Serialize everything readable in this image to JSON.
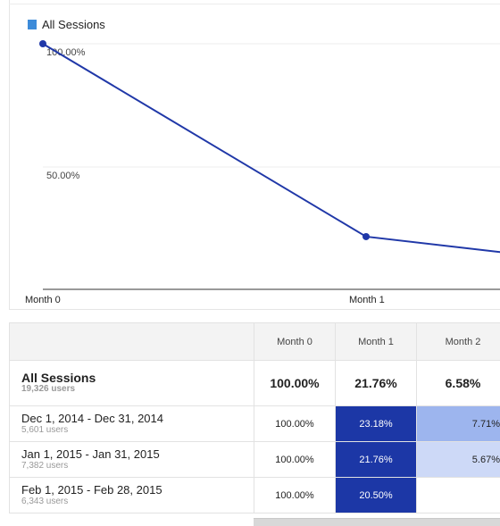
{
  "legend": {
    "label": "All Sessions",
    "color": "#3d8bd9"
  },
  "chart_data": {
    "type": "line",
    "categories": [
      "Month 0",
      "Month 1",
      "Month 2"
    ],
    "series": [
      {
        "name": "All Sessions",
        "values": [
          100.0,
          21.76,
          6.58
        ],
        "color": "#2038a8"
      }
    ],
    "y_tick_labels": [
      "100.00%",
      "50.00%"
    ],
    "x_tick_labels": [
      "Month 0",
      "Month 1"
    ],
    "ylim": [
      0,
      100
    ]
  },
  "table": {
    "columns": [
      "",
      "Month 0",
      "Month 1",
      "Month 2"
    ],
    "summary": {
      "label": "All Sessions",
      "users": "19,326 users",
      "values": [
        "100.00%",
        "21.76%",
        "6.58%"
      ]
    },
    "rows": [
      {
        "label": "Dec 1, 2014 - Dec 31, 2014",
        "users": "5,601 users",
        "values": [
          "100.00%",
          "23.18%",
          "7.71%"
        ]
      },
      {
        "label": "Jan 1, 2015 - Jan 31, 2015",
        "users": "7,382 users",
        "values": [
          "100.00%",
          "21.76%",
          "5.67%"
        ]
      },
      {
        "label": "Feb 1, 2015 - Feb 28, 2015",
        "users": "6,343 users",
        "values": [
          "100.00%",
          "20.50%",
          ""
        ]
      }
    ]
  }
}
